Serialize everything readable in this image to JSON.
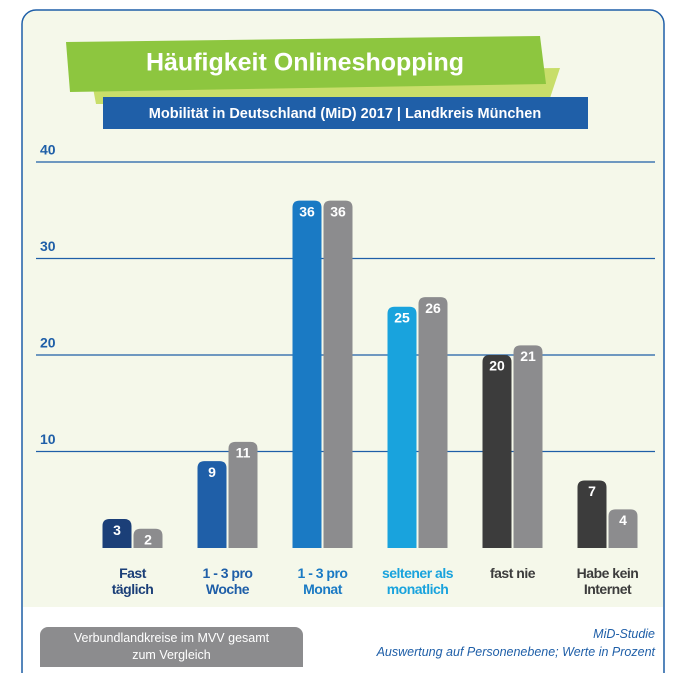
{
  "chart_data": {
    "type": "bar",
    "title": "Häufigkeit Onlineshopping",
    "subtitle": "Mobilität in Deutschland (MiD) 2017 | Landkreis München",
    "categories": [
      "Fast\ntäglich",
      "1 - 3 pro\nWoche",
      "1 - 3 pro\nMonat",
      "seltener als\nmonatlich",
      "fast nie",
      "Habe kein\nInternet"
    ],
    "category_colors": [
      "#1b3f78",
      "#1f5fa8",
      "#1a7ac4",
      "#19a3dd",
      "#3c3c3c",
      "#3c3c3c"
    ],
    "series": [
      {
        "colors": [
          "#1b3f78",
          "#1f5fa8",
          "#1a7ac4",
          "#19a3dd",
          "#3c3c3c",
          "#3c3c3c"
        ],
        "values": [
          3,
          9,
          36,
          25,
          20,
          7
        ]
      },
      {
        "name": "Verbundlandkreise im MVV gesamt\nzum Vergleich",
        "color": "#8c8c8e",
        "values": [
          2,
          11,
          36,
          26,
          21,
          4
        ]
      }
    ],
    "ylim": [
      0,
      40
    ],
    "yticks": [
      10,
      20,
      30,
      40
    ],
    "grid": true,
    "source": "MiD-Studie",
    "note": "Auswertung auf Personenebene; Werte in Prozent"
  }
}
